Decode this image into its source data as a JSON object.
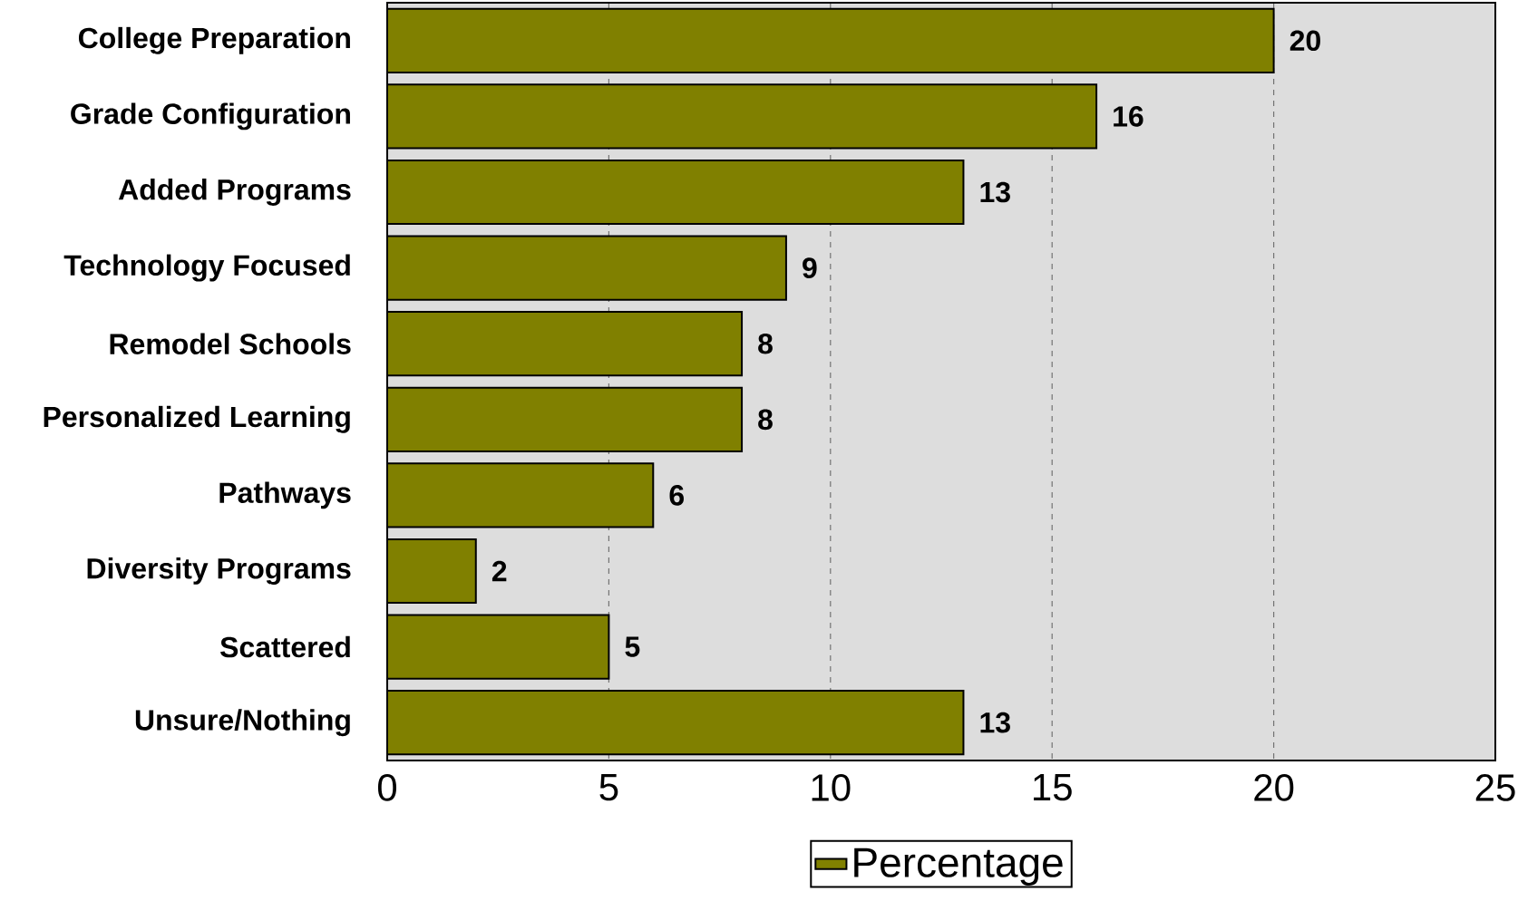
{
  "chart_data": {
    "type": "bar",
    "orientation": "horizontal",
    "categories": [
      "College Preparation",
      "Grade Configuration",
      "Added Programs",
      "Technology Focused",
      "Remodel Schools",
      "Personalized Learning",
      "Pathways",
      "Diversity Programs",
      "Scattered",
      "Unsure/Nothing"
    ],
    "series": [
      {
        "name": "Percentage",
        "color": "#808000",
        "values": [
          20,
          16,
          13,
          9,
          8,
          8,
          6,
          2,
          5,
          13
        ]
      }
    ],
    "xlim": [
      0,
      25
    ],
    "xticks": [
      0,
      5,
      10,
      15,
      20,
      25
    ],
    "grid": "x",
    "legend": "bottom",
    "data_labels": true
  }
}
